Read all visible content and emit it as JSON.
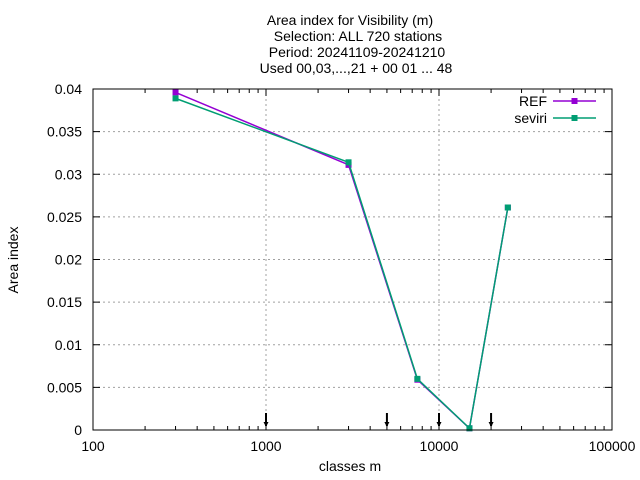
{
  "chart_data": {
    "type": "line",
    "title_lines": [
      "Area index  for Visibility (m)",
      "Selection: ALL     720 stations",
      "Period: 20241109-20241210",
      "Used 00,03,...,21 + 00 01 ... 48"
    ],
    "xlabel": "classes m",
    "ylabel": "Area index",
    "x_scale": "log",
    "xlim": [
      100,
      100000
    ],
    "ylim": [
      0,
      0.04
    ],
    "x_ticks": [
      100,
      1000,
      10000,
      100000
    ],
    "x_tick_labels": [
      "100",
      "1000",
      "10000",
      "100000"
    ],
    "y_ticks": [
      0,
      0.005,
      0.01,
      0.015,
      0.02,
      0.025,
      0.03,
      0.035,
      0.04
    ],
    "y_tick_labels": [
      "0",
      "0.005",
      "0.01",
      "0.015",
      "0.02",
      "0.025",
      "0.03",
      "0.035",
      "0.04"
    ],
    "grid": true,
    "legend_position": "top-right",
    "class_markers_x": [
      1000,
      5000,
      10000,
      20000
    ],
    "series": [
      {
        "name": "REF",
        "color": "#9400d3",
        "x": [
          300,
          3000,
          7500,
          15000,
          25000
        ],
        "y": [
          0.0396,
          0.0311,
          0.0059,
          0.0002,
          0.0261
        ]
      },
      {
        "name": "seviri",
        "color": "#009e73",
        "x": [
          300,
          3000,
          7500,
          15000,
          25000
        ],
        "y": [
          0.0389,
          0.0314,
          0.006,
          0.0002,
          0.0261
        ]
      }
    ]
  }
}
